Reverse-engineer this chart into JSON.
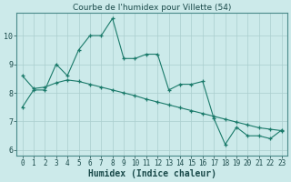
{
  "title": "Courbe de l'humidex pour Villette (54)",
  "xlabel": "Humidex (Indice chaleur)",
  "line1_x": [
    0,
    1,
    2,
    3,
    4,
    5,
    6,
    7,
    8,
    9,
    10,
    11,
    12,
    13,
    14,
    15,
    16,
    17,
    18,
    19,
    20,
    21,
    22,
    23
  ],
  "line1_y": [
    7.5,
    8.1,
    8.1,
    9.0,
    8.6,
    9.5,
    10.0,
    10.0,
    10.6,
    9.2,
    9.2,
    9.35,
    9.35,
    8.1,
    8.3,
    8.3,
    8.4,
    7.1,
    6.2,
    6.8,
    6.5,
    6.5,
    6.4,
    6.7
  ],
  "line2_x": [
    0,
    1,
    2,
    3,
    4,
    5,
    6,
    7,
    8,
    9,
    10,
    11,
    12,
    13,
    14,
    15,
    16,
    17,
    18,
    19,
    20,
    21,
    22,
    23
  ],
  "line2_y": [
    8.6,
    8.15,
    8.2,
    8.35,
    8.45,
    8.4,
    8.3,
    8.2,
    8.1,
    8.0,
    7.9,
    7.78,
    7.68,
    7.58,
    7.48,
    7.38,
    7.28,
    7.18,
    7.08,
    6.98,
    6.88,
    6.78,
    6.73,
    6.68
  ],
  "color": "#1a7a6a",
  "bg_color": "#cceaea",
  "grid_color": "#aacece",
  "ylim_min": 5.8,
  "ylim_max": 10.8,
  "xlim_min": -0.5,
  "xlim_max": 23.5,
  "yticks": [
    6,
    7,
    8,
    9,
    10
  ],
  "xticks": [
    0,
    1,
    2,
    3,
    4,
    5,
    6,
    7,
    8,
    9,
    10,
    11,
    12,
    13,
    14,
    15,
    16,
    17,
    18,
    19,
    20,
    21,
    22,
    23
  ],
  "xtick_labels": [
    "0",
    "1",
    "2",
    "3",
    "4",
    "5",
    "6",
    "7",
    "8",
    "9",
    "10",
    "11",
    "12",
    "13",
    "14",
    "15",
    "16",
    "17",
    "18",
    "19",
    "20",
    "21",
    "22",
    "23"
  ],
  "title_fontsize": 6.5,
  "xlabel_fontsize": 7,
  "tick_fontsize": 5.5
}
